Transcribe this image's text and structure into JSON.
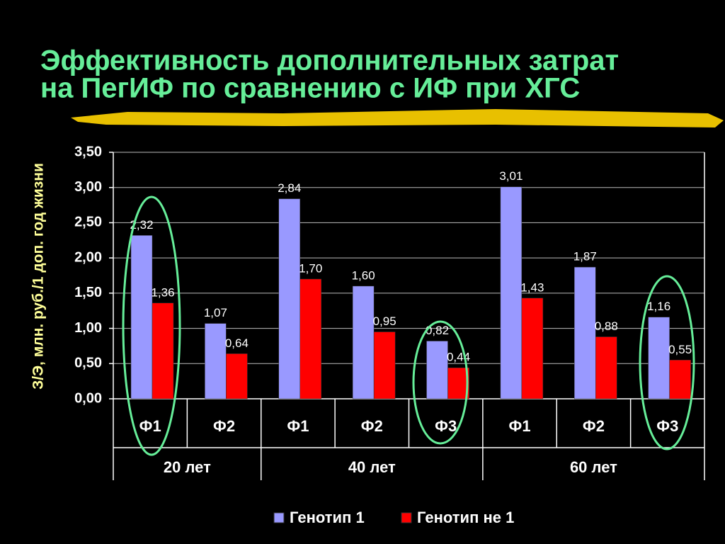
{
  "chart_data": {
    "type": "bar",
    "title": [
      "Эффективность дополнительных затрат",
      "на ПегИФ по сравнению с ИФ при ХГС"
    ],
    "y_label": "З/Э, млн. руб./1 доп. год жизни",
    "groups": [
      {
        "label": "20 лет",
        "categories": [
          "Ф1",
          "Ф2"
        ]
      },
      {
        "label": "40 лет",
        "categories": [
          "Ф1",
          "Ф2",
          "Ф3"
        ]
      },
      {
        "label": "60 лет",
        "categories": [
          "Ф1",
          "Ф2",
          "Ф3"
        ]
      }
    ],
    "series": [
      {
        "name": "Генотип 1",
        "color": "#9999ff",
        "values": [
          2.32,
          1.07,
          2.84,
          1.6,
          0.82,
          3.01,
          1.87,
          1.16
        ],
        "value_labels": [
          "2,32",
          "1,07",
          "2,84",
          "1,60",
          "0,82",
          "3,01",
          "1,87",
          "1,16"
        ]
      },
      {
        "name": "Генотип не 1",
        "color": "#ff0000",
        "values": [
          1.36,
          0.64,
          1.7,
          0.95,
          0.44,
          1.43,
          0.88,
          0.55
        ],
        "value_labels": [
          "1,36",
          "0,64",
          "1,70",
          "0,95",
          "0,44",
          "1,43",
          "0,88",
          "0,55"
        ]
      }
    ],
    "ylim": [
      0,
      3.5
    ],
    "yticks": [
      {
        "value": 0,
        "label": "0,00"
      },
      {
        "value": 0.5,
        "label": "0,50"
      },
      {
        "value": 1,
        "label": "1,00"
      },
      {
        "value": 1.5,
        "label": "1,50"
      },
      {
        "value": 2,
        "label": "2,00"
      },
      {
        "value": 2.5,
        "label": "2,50"
      },
      {
        "value": 3,
        "label": "3,00"
      },
      {
        "value": 3.5,
        "label": "3,50"
      }
    ],
    "grid": true
  }
}
